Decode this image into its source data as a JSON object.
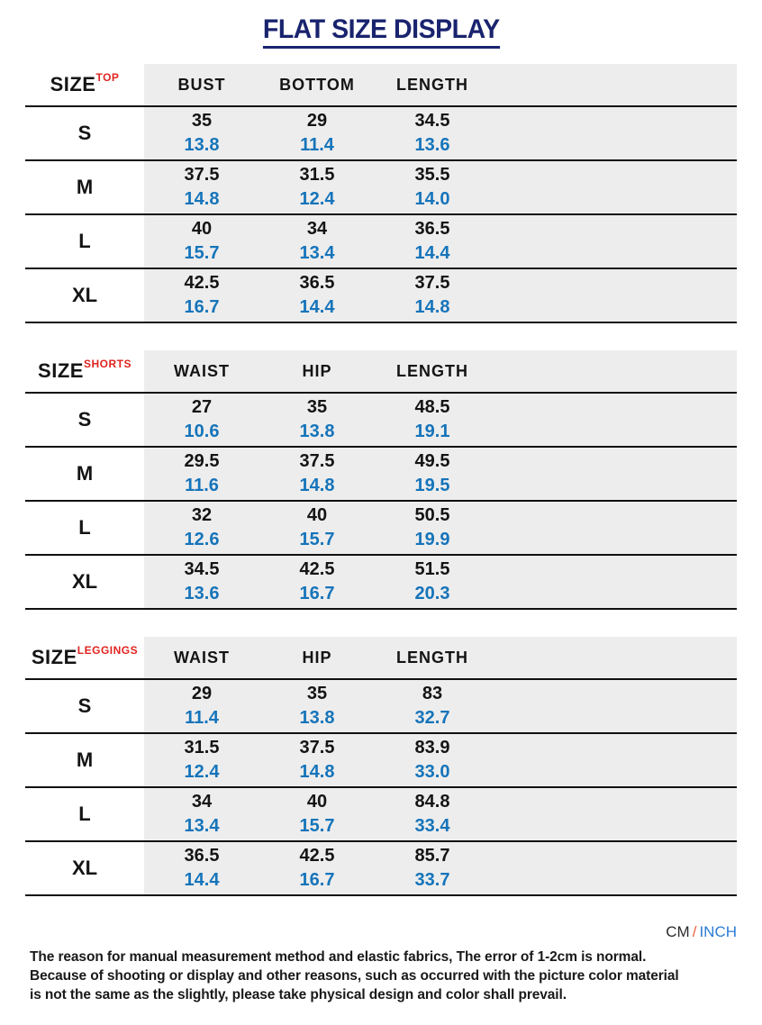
{
  "title": "FLAT SIZE DISPLAY",
  "unit_note": {
    "cm": "CM",
    "separator": "/",
    "inch": "INCH"
  },
  "footer_lines": [
    "The reason for manual measurement method and elastic fabrics, The error of 1-2cm is normal.",
    "Because of shooting or display and other reasons, such as occurred with the picture color material",
    "is not the same as the slightly, please take physical design and color shall prevail."
  ],
  "colors": {
    "title_navy": "#19236e",
    "category_red": "#e02420",
    "inch_blue": "#1574ba",
    "unit_inch_blue": "#2b7cd7",
    "unit_slash_orange": "#e8603c",
    "row_gray": "#ededed",
    "line_black": "#101010"
  },
  "tables": [
    {
      "size_label": "SIZE",
      "category": "TOP",
      "columns": [
        "BUST",
        "BOTTOM",
        "LENGTH"
      ],
      "rows": [
        {
          "size": "S",
          "cells": [
            {
              "cm": "35",
              "inch": "13.8"
            },
            {
              "cm": "29",
              "inch": "11.4"
            },
            {
              "cm": "34.5",
              "inch": "13.6"
            }
          ]
        },
        {
          "size": "M",
          "cells": [
            {
              "cm": "37.5",
              "inch": "14.8"
            },
            {
              "cm": "31.5",
              "inch": "12.4"
            },
            {
              "cm": "35.5",
              "inch": "14.0"
            }
          ]
        },
        {
          "size": "L",
          "cells": [
            {
              "cm": "40",
              "inch": "15.7"
            },
            {
              "cm": "34",
              "inch": "13.4"
            },
            {
              "cm": "36.5",
              "inch": "14.4"
            }
          ]
        },
        {
          "size": "XL",
          "cells": [
            {
              "cm": "42.5",
              "inch": "16.7"
            },
            {
              "cm": "36.5",
              "inch": "14.4"
            },
            {
              "cm": "37.5",
              "inch": "14.8"
            }
          ]
        }
      ]
    },
    {
      "size_label": "SIZE",
      "category": "SHORTS",
      "columns": [
        "WAIST",
        "HIP",
        "LENGTH"
      ],
      "rows": [
        {
          "size": "S",
          "cells": [
            {
              "cm": "27",
              "inch": "10.6"
            },
            {
              "cm": "35",
              "inch": "13.8"
            },
            {
              "cm": "48.5",
              "inch": "19.1"
            }
          ]
        },
        {
          "size": "M",
          "cells": [
            {
              "cm": "29.5",
              "inch": "11.6"
            },
            {
              "cm": "37.5",
              "inch": "14.8"
            },
            {
              "cm": "49.5",
              "inch": "19.5"
            }
          ]
        },
        {
          "size": "L",
          "cells": [
            {
              "cm": "32",
              "inch": "12.6"
            },
            {
              "cm": "40",
              "inch": "15.7"
            },
            {
              "cm": "50.5",
              "inch": "19.9"
            }
          ]
        },
        {
          "size": "XL",
          "cells": [
            {
              "cm": "34.5",
              "inch": "13.6"
            },
            {
              "cm": "42.5",
              "inch": "16.7"
            },
            {
              "cm": "51.5",
              "inch": "20.3"
            }
          ]
        }
      ]
    },
    {
      "size_label": "SIZE",
      "category": "LEGGINGS",
      "columns": [
        "WAIST",
        "HIP",
        "LENGTH"
      ],
      "rows": [
        {
          "size": "S",
          "cells": [
            {
              "cm": "29",
              "inch": "11.4"
            },
            {
              "cm": "35",
              "inch": "13.8"
            },
            {
              "cm": "83",
              "inch": "32.7"
            }
          ]
        },
        {
          "size": "M",
          "cells": [
            {
              "cm": "31.5",
              "inch": "12.4"
            },
            {
              "cm": "37.5",
              "inch": "14.8"
            },
            {
              "cm": "83.9",
              "inch": "33.0"
            }
          ]
        },
        {
          "size": "L",
          "cells": [
            {
              "cm": "34",
              "inch": "13.4"
            },
            {
              "cm": "40",
              "inch": "15.7"
            },
            {
              "cm": "84.8",
              "inch": "33.4"
            }
          ]
        },
        {
          "size": "XL",
          "cells": [
            {
              "cm": "36.5",
              "inch": "14.4"
            },
            {
              "cm": "42.5",
              "inch": "16.7"
            },
            {
              "cm": "85.7",
              "inch": "33.7"
            }
          ]
        }
      ]
    }
  ]
}
